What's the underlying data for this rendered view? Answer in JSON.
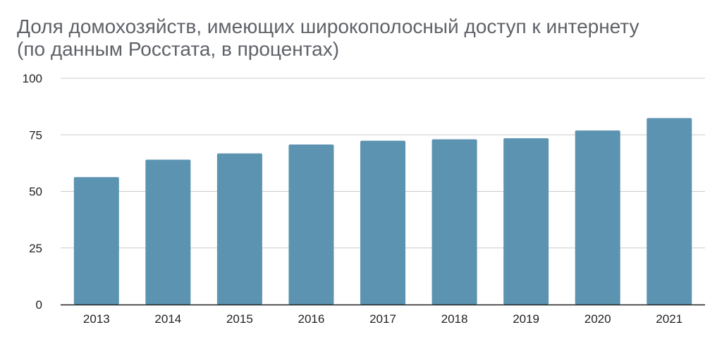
{
  "chart_data": {
    "type": "bar",
    "title_line1": "Доля домохозяйств, имеющих широкополосный доступ к интернету",
    "title_line2": "(по данным Росстата, в процентах)",
    "xlabel": "",
    "ylabel": "",
    "categories": [
      "2013",
      "2014",
      "2015",
      "2016",
      "2017",
      "2018",
      "2019",
      "2020",
      "2021"
    ],
    "values": [
      56.3,
      64.0,
      66.8,
      70.7,
      72.4,
      73.0,
      73.5,
      76.9,
      82.4
    ],
    "ylim": [
      0,
      100
    ],
    "yticks": [
      "0",
      "25",
      "50",
      "75",
      "100"
    ],
    "grid": true,
    "legend": "none",
    "colors": {
      "bar": "#5b93b0",
      "grid": "#cccccc",
      "axis": "#222222"
    }
  }
}
